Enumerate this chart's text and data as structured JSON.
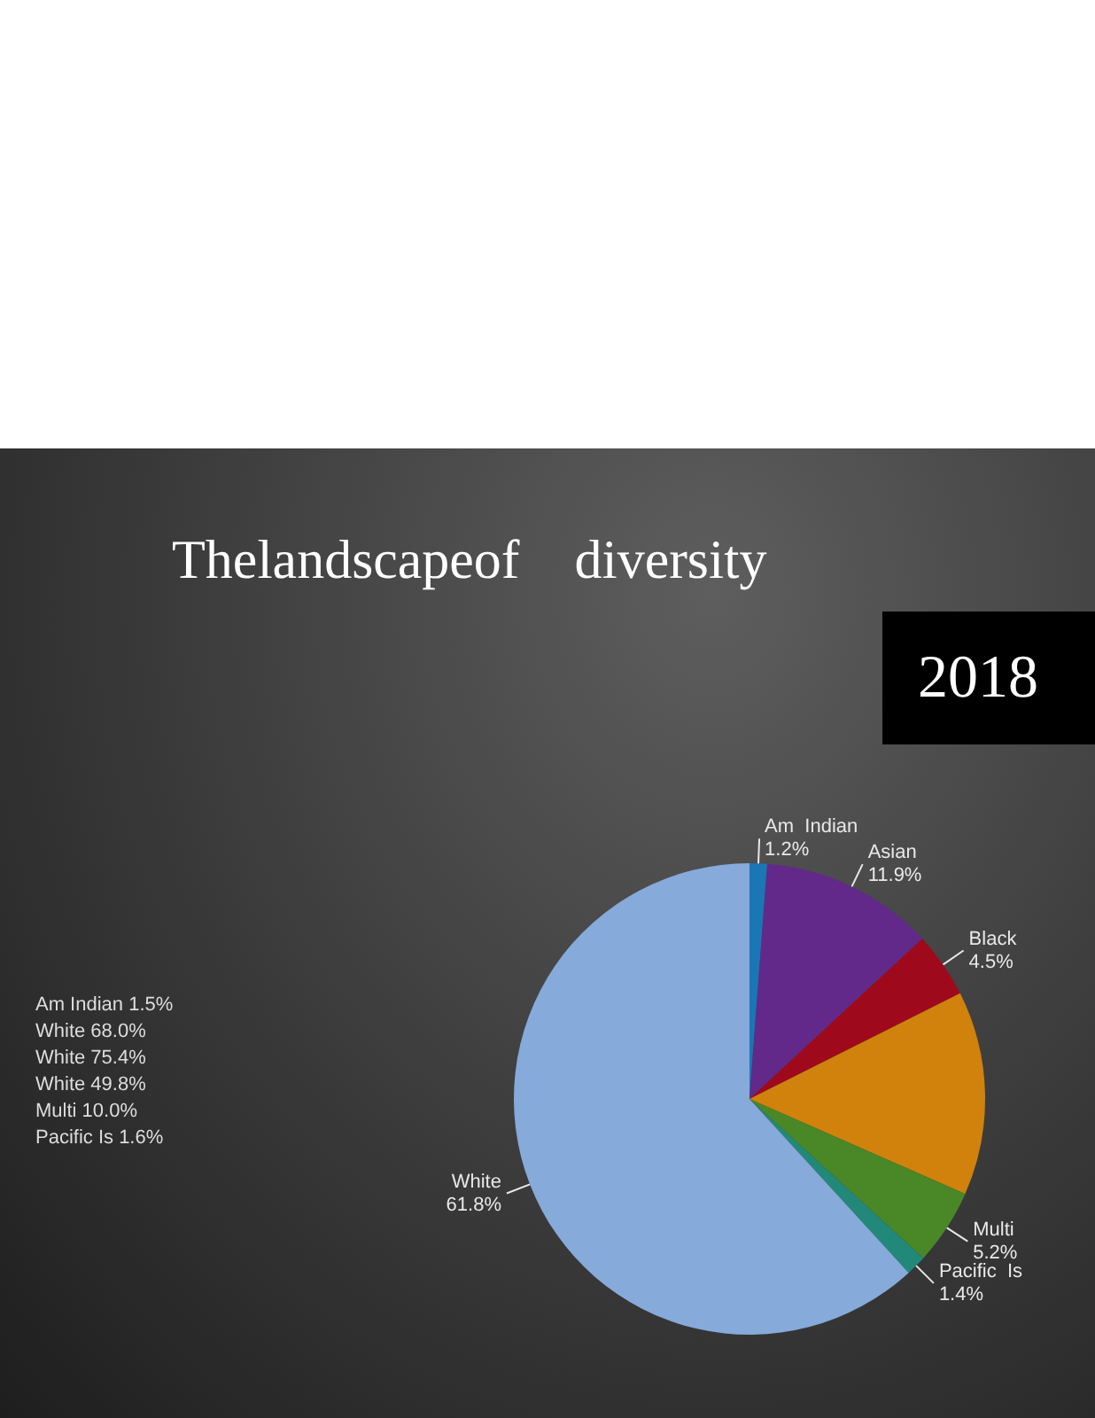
{
  "chart_data": {
    "type": "pie",
    "title": "Thelandscapeof    diversity",
    "subtitle": "2018",
    "categories": [
      "Am  Indian",
      "Asian",
      "Black",
      null,
      "Multi",
      "Pacific  Is",
      "White"
    ],
    "values": [
      1.2,
      11.9,
      4.5,
      14.0,
      5.2,
      1.4,
      61.8
    ],
    "colors": [
      "#1a76b4",
      "#62298a",
      "#9e0a1c",
      "#d0820c",
      "#4a8726",
      "#22897a",
      "#86aad9"
    ],
    "value_labels": [
      "1.2%",
      "11.9%",
      "4.5%",
      null,
      "5.2%",
      "1.4%",
      "61.8%"
    ],
    "annotations": [
      "Am  Indian 1.5%",
      "White 68.0%",
      "White 75.4%",
      "White 49.8%",
      "Multi 10.0%",
      "Pacific  Is 1.6%"
    ],
    "legend": false
  }
}
